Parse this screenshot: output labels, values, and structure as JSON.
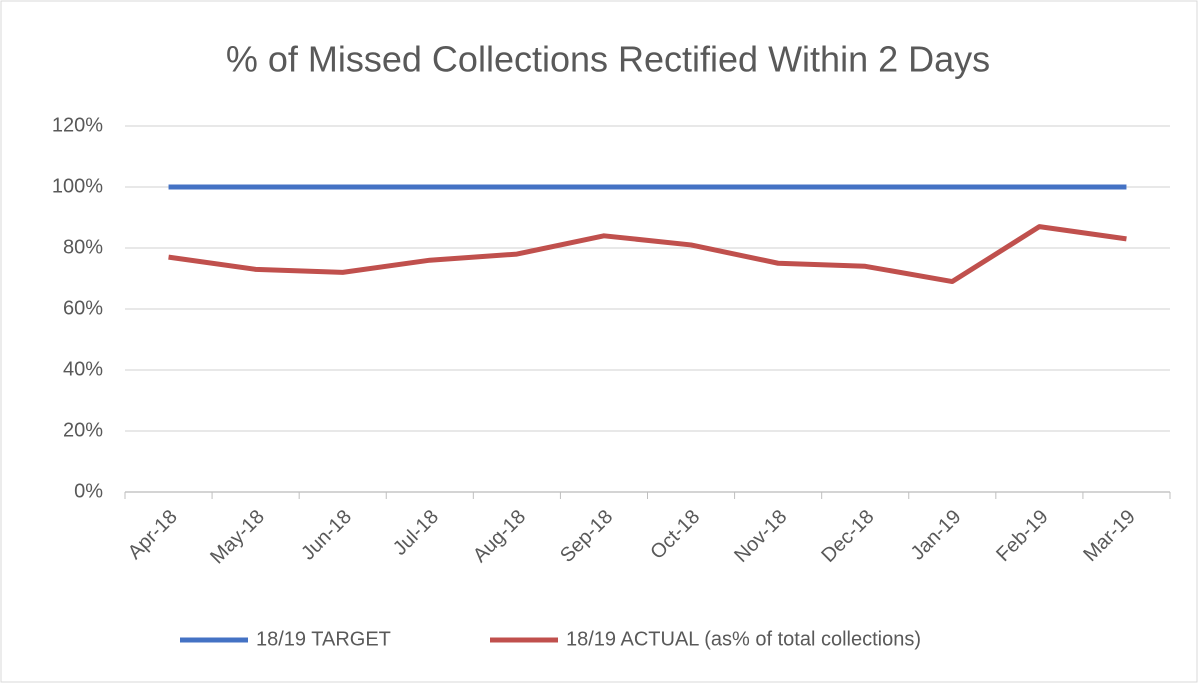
{
  "chart_data": {
    "type": "line",
    "title": "% of Missed Collections Rectified Within 2 Days",
    "categories": [
      "Apr-18",
      "May-18",
      "Jun-18",
      "Jul-18",
      "Aug-18",
      "Sep-18",
      "Oct-18",
      "Nov-18",
      "Dec-18",
      "Jan-19",
      "Feb-19",
      "Mar-19"
    ],
    "series": [
      {
        "name": "18/19 TARGET",
        "color": "#4472c4",
        "values": [
          100,
          100,
          100,
          100,
          100,
          100,
          100,
          100,
          100,
          100,
          100,
          100
        ]
      },
      {
        "name": "18/19 ACTUAL (as% of total collections)",
        "color": "#c0504d",
        "values": [
          77,
          73,
          72,
          76,
          78,
          84,
          81,
          75,
          74,
          69,
          87,
          83
        ]
      }
    ],
    "ylim": [
      0,
      120
    ],
    "yticks": [
      {
        "value": 0,
        "label": "0%"
      },
      {
        "value": 20,
        "label": "20%"
      },
      {
        "value": 40,
        "label": "40%"
      },
      {
        "value": 60,
        "label": "60%"
      },
      {
        "value": 80,
        "label": "80%"
      },
      {
        "value": 100,
        "label": "100%"
      },
      {
        "value": 120,
        "label": "120%"
      }
    ],
    "grid": true,
    "legend": "bottom"
  }
}
